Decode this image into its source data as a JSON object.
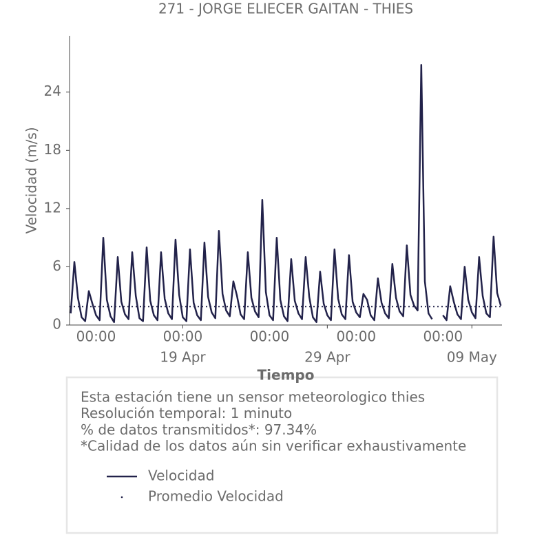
{
  "chart_data": {
    "type": "line",
    "title": "271 - JORGE ELIECER GAITAN - THIES",
    "x_label": "Tiempo",
    "y_label": "Velocidad (m/s)",
    "x": [
      "04-11 06:00",
      "04-11 12:00",
      "04-11 18:00",
      "04-12 00:00",
      "04-12 06:00",
      "04-12 12:00",
      "04-12 18:00",
      "04-13 00:00",
      "04-13 06:00",
      "04-13 12:00",
      "04-13 18:00",
      "04-14 00:00",
      "04-14 06:00",
      "04-14 12:00",
      "04-14 18:00",
      "04-15 00:00",
      "04-15 06:00",
      "04-15 12:00",
      "04-15 18:00",
      "04-16 00:00",
      "04-16 06:00",
      "04-16 12:00",
      "04-16 18:00",
      "04-17 00:00",
      "04-17 06:00",
      "04-17 12:00",
      "04-17 18:00",
      "04-18 00:00",
      "04-18 06:00",
      "04-18 12:00",
      "04-18 18:00",
      "04-19 00:00",
      "04-19 06:00",
      "04-19 12:00",
      "04-19 18:00",
      "04-20 00:00",
      "04-20 06:00",
      "04-20 12:00",
      "04-20 18:00",
      "04-21 00:00",
      "04-21 06:00",
      "04-21 12:00",
      "04-21 18:00",
      "04-22 00:00",
      "04-22 06:00",
      "04-22 12:00",
      "04-22 18:00",
      "04-23 00:00",
      "04-23 06:00",
      "04-23 12:00",
      "04-23 18:00",
      "04-24 00:00",
      "04-24 06:00",
      "04-24 12:00",
      "04-24 18:00",
      "04-25 00:00",
      "04-25 06:00",
      "04-25 12:00",
      "04-25 18:00",
      "04-26 00:00",
      "04-26 06:00",
      "04-26 12:00",
      "04-26 18:00",
      "04-27 00:00",
      "04-27 06:00",
      "04-27 12:00",
      "04-27 18:00",
      "04-28 00:00",
      "04-28 06:00",
      "04-28 12:00",
      "04-28 18:00",
      "04-29 00:00",
      "04-29 06:00",
      "04-29 12:00",
      "04-29 18:00",
      "04-30 00:00",
      "04-30 06:00",
      "04-30 12:00",
      "04-30 18:00",
      "05-01 00:00",
      "05-01 06:00",
      "05-01 12:00",
      "05-01 18:00",
      "05-02 00:00",
      "05-02 06:00",
      "05-02 12:00",
      "05-02 18:00",
      "05-03 00:00",
      "05-03 06:00",
      "05-03 12:00",
      "05-03 18:00",
      "05-04 00:00",
      "05-04 06:00",
      "05-04 12:00",
      "05-04 18:00",
      "05-05 00:00",
      "05-05 06:00",
      "05-05 12:00",
      "05-05 18:00",
      "05-06 00:00",
      "05-06 06:00",
      "05-06 12:00",
      "05-06 18:00",
      "05-07 00:00",
      "05-07 06:00",
      "05-07 12:00",
      "05-07 18:00",
      "05-08 00:00",
      "05-08 06:00",
      "05-08 12:00",
      "05-08 18:00",
      "05-09 00:00",
      "05-09 06:00",
      "05-09 12:00",
      "05-09 18:00",
      "05-10 00:00",
      "05-10 06:00",
      "05-10 12:00",
      "05-10 18:00",
      "05-11 00:00"
    ],
    "series": [
      {
        "name": "Velocidad",
        "color": "#22224a",
        "values": [
          1.2,
          6.5,
          2.8,
          0.8,
          0.4,
          3.5,
          2.2,
          1.0,
          0.5,
          9.0,
          2.6,
          0.9,
          0.3,
          7.0,
          2.4,
          1.1,
          0.6,
          7.5,
          3.0,
          0.7,
          0.4,
          8.0,
          2.5,
          1.0,
          0.5,
          7.5,
          2.7,
          1.2,
          0.6,
          8.8,
          3.1,
          0.8,
          0.4,
          7.8,
          2.3,
          1.0,
          0.5,
          8.5,
          2.9,
          1.3,
          0.7,
          9.7,
          3.2,
          1.5,
          0.9,
          4.5,
          3.0,
          1.1,
          0.6,
          7.5,
          2.8,
          1.4,
          0.8,
          12.9,
          3.4,
          1.0,
          0.5,
          9.0,
          2.6,
          0.9,
          0.4,
          6.8,
          2.5,
          1.2,
          0.6,
          7.0,
          2.9,
          0.8,
          0.3,
          5.5,
          2.2,
          1.0,
          0.5,
          7.8,
          2.7,
          1.1,
          0.6,
          7.2,
          2.4,
          1.3,
          0.8,
          3.2,
          2.6,
          1.0,
          0.5,
          4.8,
          2.3,
          1.2,
          0.7,
          6.3,
          2.8,
          1.4,
          0.9,
          8.2,
          3.1,
          2.0,
          1.5,
          26.8,
          4.5,
          1.2,
          0.6,
          null,
          null,
          1.0,
          0.5,
          4.0,
          2.4,
          1.1,
          0.6,
          6.0,
          2.6,
          1.3,
          0.7,
          7.0,
          3.0,
          1.2,
          0.8,
          9.1,
          3.3,
          2.0
        ]
      }
    ],
    "average": {
      "name": "Promedio Velocidad",
      "value": 1.9,
      "color": "#22224a"
    },
    "xlim": [
      "04-11 04:00",
      "05-11 02:00"
    ],
    "xticks": [
      {
        "value": "04-13 00:00",
        "label": "00:00"
      },
      {
        "value": "04-19 00:00",
        "label": "00:00"
      },
      {
        "value": "04-25 00:00",
        "label": "00:00"
      },
      {
        "value": "05-01 00:00",
        "label": "00:00"
      },
      {
        "value": "05-07 00:00",
        "label": "00:00"
      }
    ],
    "xticks2": [
      {
        "value": "04-19 00:00",
        "label": "19 Apr"
      },
      {
        "value": "04-29 00:00",
        "label": "29 Apr"
      },
      {
        "value": "05-09 00:00",
        "label": "09 May"
      }
    ],
    "ylim": [
      0,
      29.8
    ],
    "yticks": [
      0,
      6,
      12,
      18,
      24
    ],
    "notes": [
      "Esta estación tiene un sensor meteorologico thies",
      "Resolución temporal: 1 minuto",
      "% de datos transmitidos*: 97.34%",
      "*Calidad de los datos aún sin verificar exhaustivamente"
    ]
  }
}
